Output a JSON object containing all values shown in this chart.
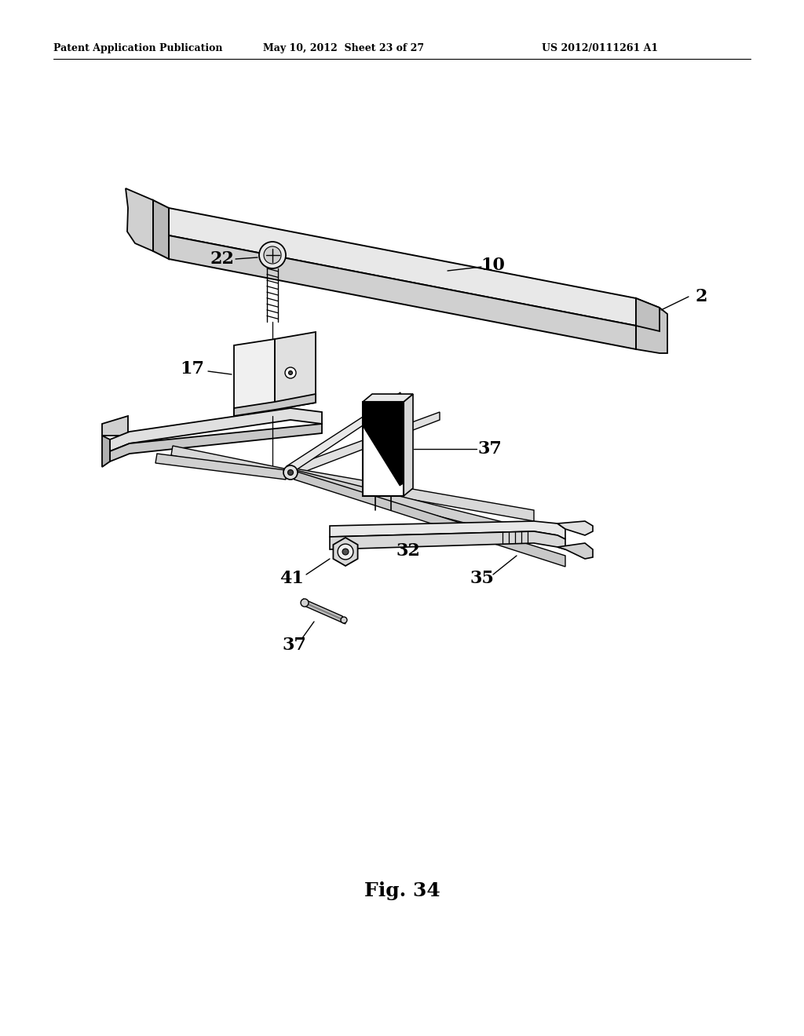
{
  "bg_color": "#ffffff",
  "fig_width": 10.24,
  "fig_height": 13.2,
  "header_left": "Patent Application Publication",
  "header_mid": "May 10, 2012  Sheet 23 of 27",
  "header_right": "US 2012/0111261 A1",
  "fig_label": "Fig. 34"
}
